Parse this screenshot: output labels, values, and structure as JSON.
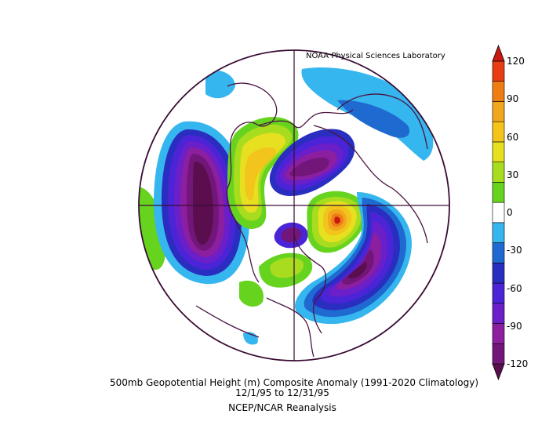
{
  "credit": "NOAA Physical Sciences Laboratory",
  "title_line1": "500mb Geopotential Height (m) Composite Anomaly (1991-2020 Climatology)",
  "title_line2": "12/1/95   to 12/31/95",
  "title_line3": "NCEP/NCAR Reanalysis",
  "colorbar": {
    "labels": [
      "120",
      "90",
      "60",
      "30",
      "0",
      "-30",
      "-60",
      "-90",
      "-120"
    ],
    "bins": [
      {
        "range": "-120 and below",
        "color": "#5a0e4e"
      },
      {
        "range": "-120 to -105",
        "color": "#73167a"
      },
      {
        "range": "-105 to -90",
        "color": "#8c1fa0"
      },
      {
        "range": "-90 to -75",
        "color": "#6a1fc8"
      },
      {
        "range": "-75 to -60",
        "color": "#4a24d6"
      },
      {
        "range": "-60 to -45",
        "color": "#2a2ec0"
      },
      {
        "range": "-45 to -30",
        "color": "#1e6ad0"
      },
      {
        "range": "-30 to -15",
        "color": "#36b6ee"
      },
      {
        "range": "-15 to 15",
        "color": "#ffffff"
      },
      {
        "range": "15 to 30",
        "color": "#66d41e"
      },
      {
        "range": "30 to 45",
        "color": "#a8dc1e"
      },
      {
        "range": "45 to 60",
        "color": "#e6e020"
      },
      {
        "range": "60 to 75",
        "color": "#f2c41c"
      },
      {
        "range": "75 to 90",
        "color": "#f0a61e"
      },
      {
        "range": "90 to 105",
        "color": "#ee7e14"
      },
      {
        "range": "105 to 120",
        "color": "#e83c12"
      },
      {
        "range": "120 and above",
        "color": "#c81a10"
      }
    ]
  }
}
